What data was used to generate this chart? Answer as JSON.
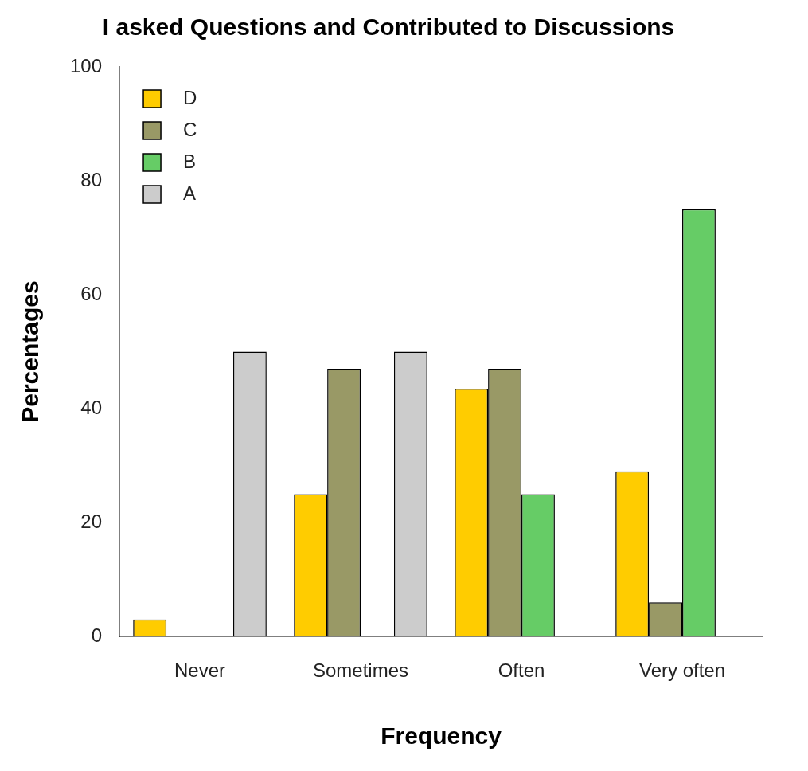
{
  "chart_data": {
    "type": "bar",
    "title": "I asked Questions and Contributed to Discussions",
    "xlabel": "Frequency",
    "ylabel": "Percentages",
    "categories": [
      "Never",
      "Sometimes",
      "Often",
      "Very often"
    ],
    "series": [
      {
        "name": "D",
        "color": "#ffcc00",
        "values": [
          3,
          25,
          43.5,
          29
        ]
      },
      {
        "name": "C",
        "color": "#999966",
        "values": [
          0,
          47,
          47,
          6
        ]
      },
      {
        "name": "B",
        "color": "#66cc66",
        "values": [
          0,
          0,
          25,
          75
        ]
      },
      {
        "name": "A",
        "color": "#cccccc",
        "values": [
          50,
          50,
          0,
          0
        ]
      }
    ],
    "ylim": [
      0,
      100
    ],
    "yticks": [
      0,
      20,
      40,
      60,
      80,
      100
    ],
    "grid": false,
    "legend": "top left"
  }
}
